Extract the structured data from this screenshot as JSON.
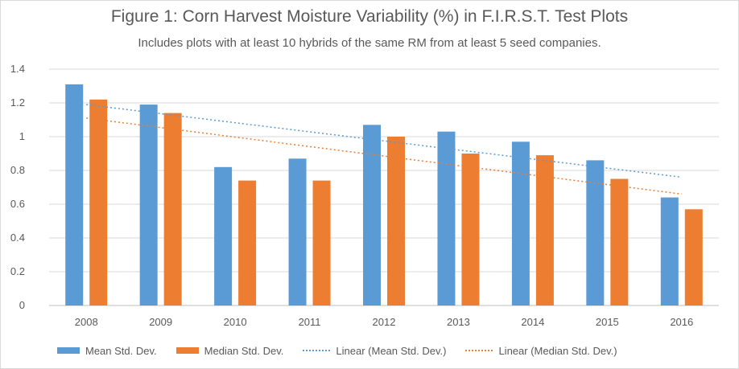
{
  "chart_data": {
    "type": "bar",
    "title": "Figure 1:  Corn Harvest Moisture Variability (%) in F.I.R.S.T. Test Plots",
    "subtitle": "Includes plots with at least 10 hybrids of the same RM from at least 5 seed companies.",
    "categories": [
      "2008",
      "2009",
      "2010",
      "2011",
      "2012",
      "2013",
      "2014",
      "2015",
      "2016"
    ],
    "series": [
      {
        "name": "Mean Std. Dev.",
        "color": "#5b9bd5",
        "values": [
          1.31,
          1.19,
          0.82,
          0.87,
          1.07,
          1.03,
          0.97,
          0.86,
          0.64
        ]
      },
      {
        "name": "Median Std. Dev.",
        "color": "#ed7d31",
        "values": [
          1.22,
          1.14,
          0.74,
          0.74,
          1.0,
          0.9,
          0.89,
          0.75,
          0.57
        ]
      }
    ],
    "trendlines": [
      {
        "name": "Linear  (Mean Std. Dev.)",
        "color": "#5b9bd5",
        "style": "dotted",
        "start": 1.19,
        "end": 0.76
      },
      {
        "name": "Linear  (Median Std. Dev.)",
        "color": "#ed7d31",
        "style": "dotted",
        "start": 1.11,
        "end": 0.66
      }
    ],
    "yticks": [
      "0",
      "0.2",
      "0.4",
      "0.6",
      "0.8",
      "1",
      "1.2",
      "1.4"
    ],
    "ylim": [
      0,
      1.4
    ],
    "grid": true,
    "legend": "bottom"
  }
}
